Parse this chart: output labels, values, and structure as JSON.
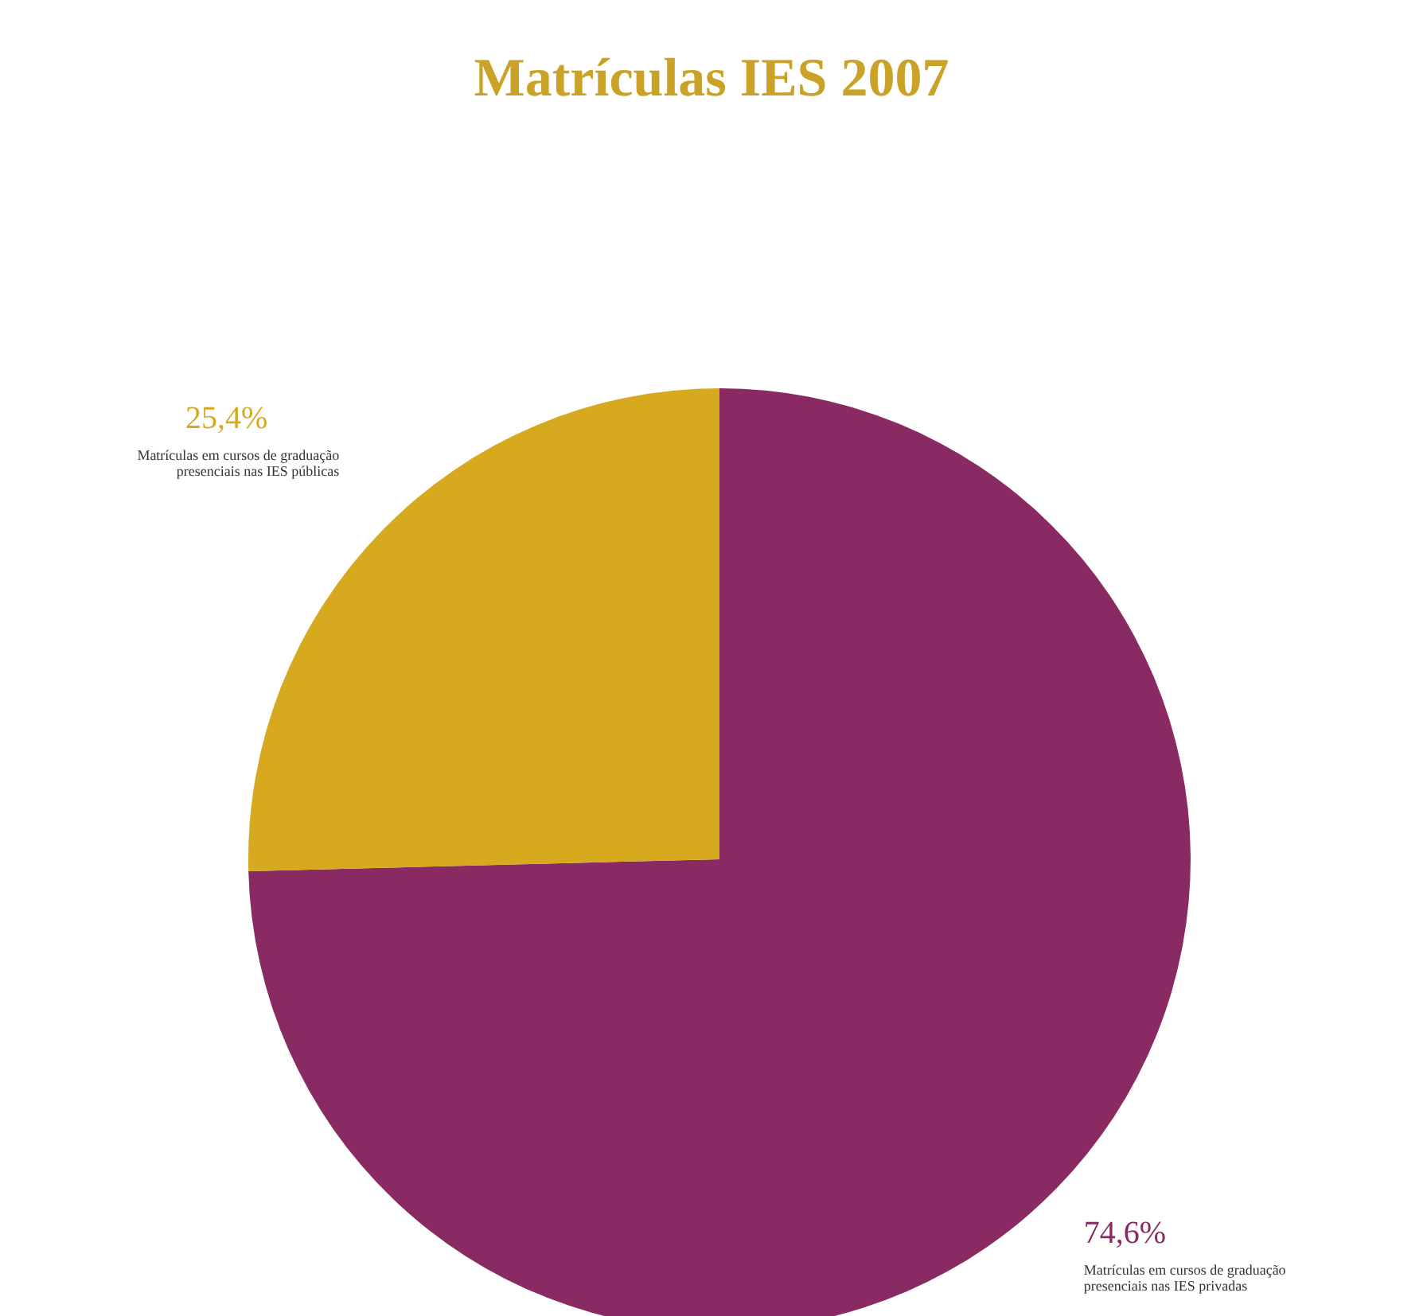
{
  "chart_data": {
    "type": "pie",
    "title": "Matrículas IES 2007",
    "categories": [
      "Matrículas em cursos de graduação presenciais nas IES privadas",
      "Matrículas em cursos de graduação presenciais nas IES públicas"
    ],
    "values": [
      74.6,
      25.4
    ],
    "value_labels": [
      "74,6%",
      "25,4%"
    ],
    "colors": [
      "#8a2a62",
      "#d6a91e"
    ]
  }
}
